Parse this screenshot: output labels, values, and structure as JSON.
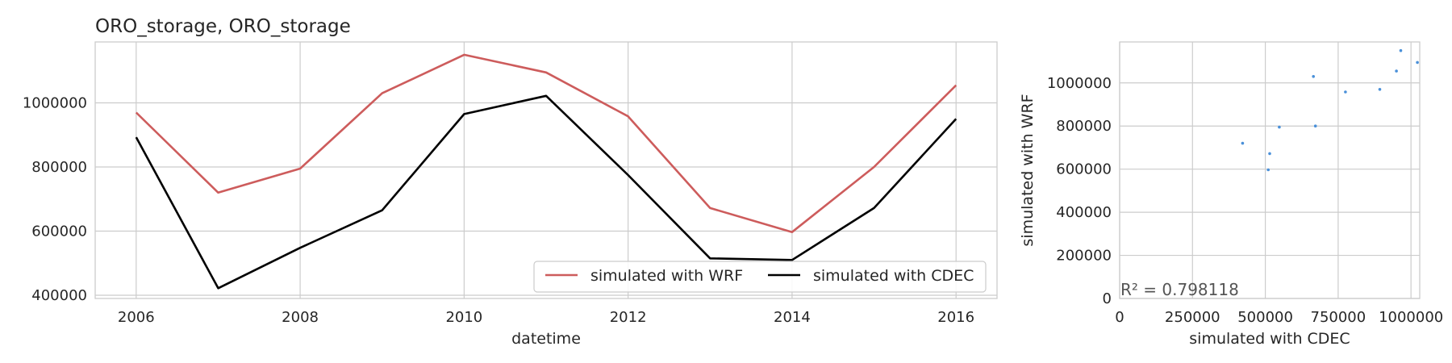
{
  "colors": {
    "wrf": "#cd5c5c",
    "cdec": "#000000",
    "scatter": "#4a90d9",
    "grid": "#cccccc"
  },
  "chart_data": [
    {
      "type": "line",
      "title": "ORO_storage, ORO_storage",
      "xlabel": "datetime",
      "ylabel": "",
      "x": [
        2006,
        2007,
        2008,
        2009,
        2010,
        2011,
        2012,
        2013,
        2014,
        2015,
        2016
      ],
      "xlim": [
        2005.5,
        2016.5
      ],
      "ylim": [
        390000,
        1190000
      ],
      "xticks": [
        2006,
        2008,
        2010,
        2012,
        2014,
        2016
      ],
      "yticks": [
        400000,
        600000,
        800000,
        1000000
      ],
      "xtick_labels": [
        "2006",
        "2008",
        "2010",
        "2012",
        "2014",
        "2016"
      ],
      "ytick_labels": [
        "400000",
        "600000",
        "800000",
        "1000000"
      ],
      "grid": true,
      "legend_placement": "lower-right",
      "series": [
        {
          "name": "simulated with WRF",
          "color": "#cd5c5c",
          "values": [
            970000,
            720000,
            795000,
            1030000,
            1150000,
            1095000,
            958000,
            672000,
            597000,
            800000,
            1055000
          ]
        },
        {
          "name": "simulated with CDEC",
          "color": "#000000",
          "values": [
            893000,
            422000,
            548000,
            665000,
            965000,
            1022000,
            775000,
            515000,
            510000,
            672000,
            950000
          ]
        }
      ]
    },
    {
      "type": "scatter",
      "title": "",
      "xlabel": "simulated with CDEC",
      "ylabel": "simulated with WRF",
      "xlim": [
        0,
        1030000
      ],
      "ylim": [
        0,
        1190000
      ],
      "xticks": [
        0,
        250000,
        500000,
        750000,
        1000000
      ],
      "yticks": [
        0,
        200000,
        400000,
        600000,
        800000,
        1000000
      ],
      "xtick_labels": [
        "0",
        "250000",
        "500000",
        "750000",
        "1000000"
      ],
      "ytick_labels": [
        "0",
        "200000",
        "400000",
        "600000",
        "800000",
        "1000000"
      ],
      "grid": true,
      "annotation": "R² = 0.798118",
      "points": {
        "x": [
          422000,
          510000,
          515000,
          548000,
          665000,
          672000,
          775000,
          893000,
          950000,
          965000,
          1022000
        ],
        "y": [
          720000,
          597000,
          672000,
          795000,
          1030000,
          800000,
          958000,
          970000,
          1055000,
          1150000,
          1095000
        ]
      }
    }
  ]
}
